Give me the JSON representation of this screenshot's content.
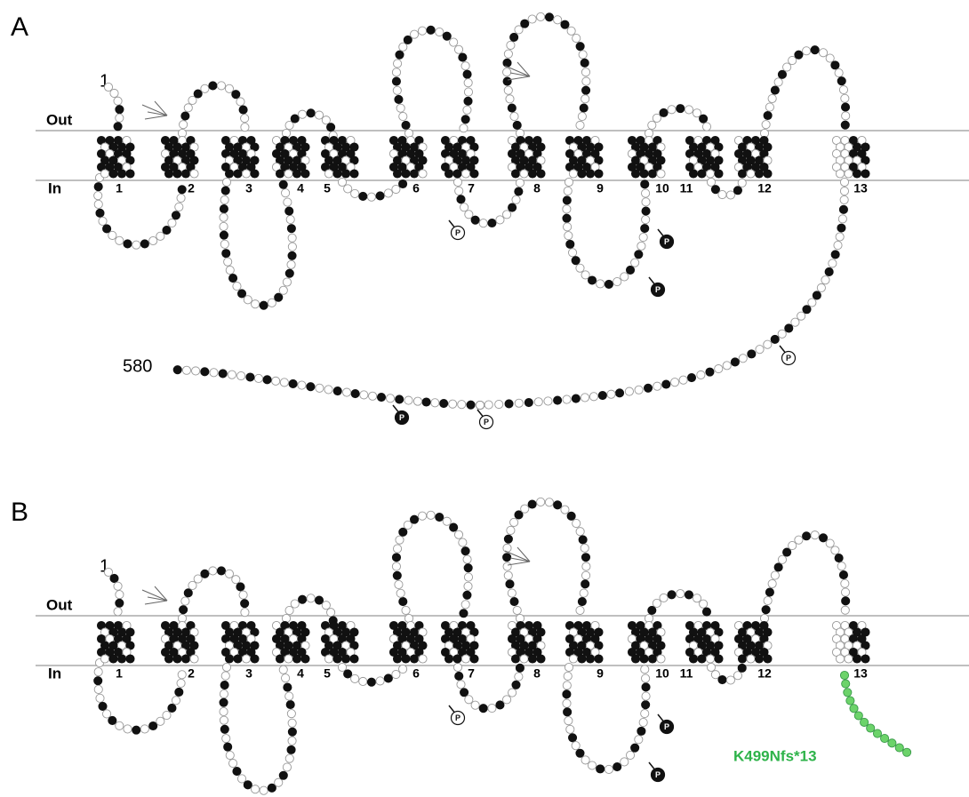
{
  "panels": [
    {
      "label": "A",
      "out": "Out",
      "in": "In",
      "n_terminus": "1",
      "c_terminus": "580",
      "helices": [
        "1",
        "2",
        "3",
        "4",
        "5",
        "6",
        "7",
        "8",
        "9",
        "10",
        "11",
        "12",
        "13"
      ],
      "phospho": [
        "P",
        "P",
        "P",
        "P",
        "P",
        "P"
      ]
    },
    {
      "label": "B",
      "out": "Out",
      "in": "In",
      "n_terminus": "1",
      "helices": [
        "1",
        "2",
        "3",
        "4",
        "5",
        "6",
        "7",
        "8",
        "9",
        "10",
        "11",
        "12",
        "13"
      ],
      "phospho": [
        "P",
        "P",
        "P"
      ],
      "mutation": "K499Nfs*13"
    }
  ]
}
